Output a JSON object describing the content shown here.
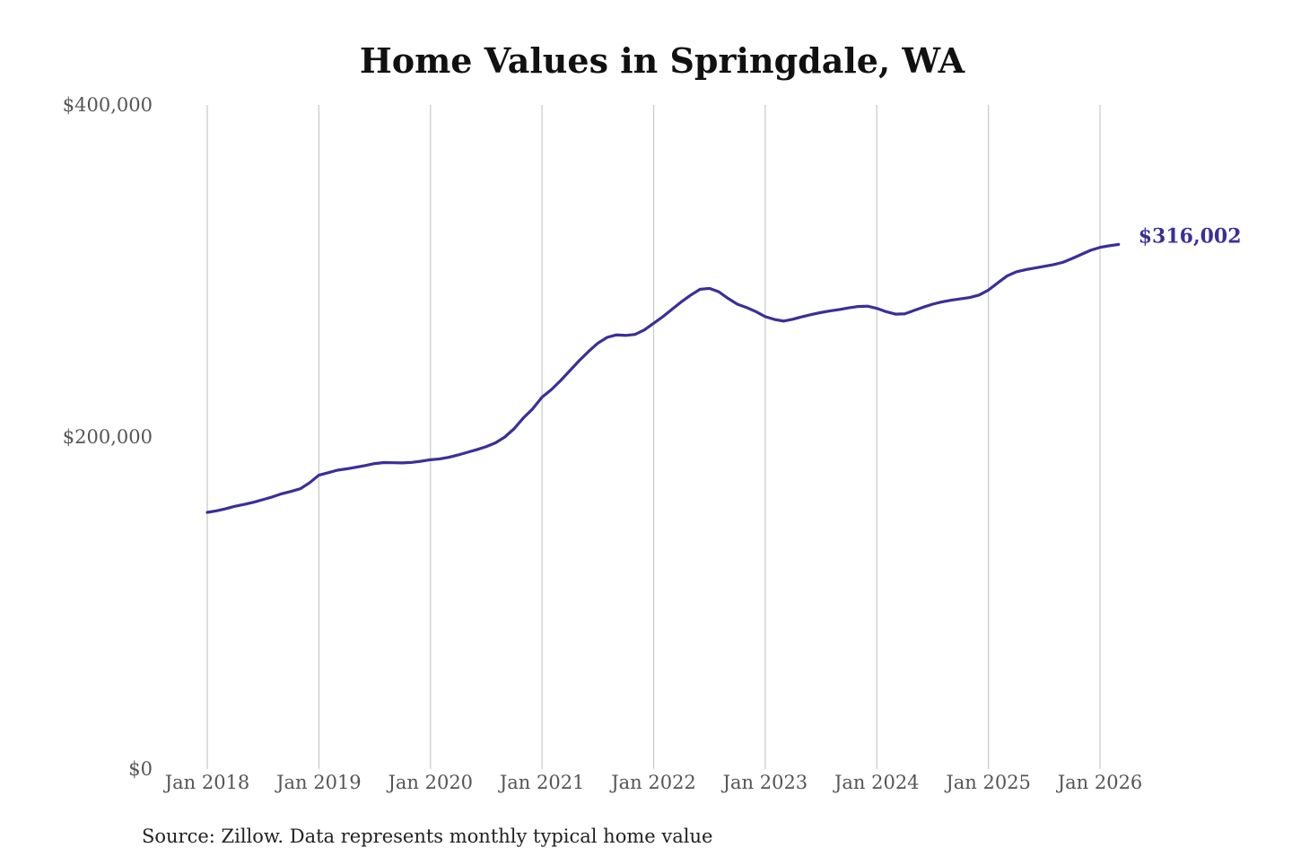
{
  "chart_data": {
    "type": "line",
    "title": "Home Values in Springdale, WA",
    "source": "Source: Zillow. Data represents monthly typical home value",
    "color": "#3b2f98",
    "grid": true,
    "x": [
      "2018-01",
      "2018-02",
      "2018-03",
      "2018-04",
      "2018-05",
      "2018-06",
      "2018-07",
      "2018-08",
      "2018-09",
      "2018-10",
      "2018-11",
      "2018-12",
      "2019-01",
      "2019-02",
      "2019-03",
      "2019-04",
      "2019-05",
      "2019-06",
      "2019-07",
      "2019-08",
      "2019-09",
      "2019-10",
      "2019-11",
      "2019-12",
      "2020-01",
      "2020-02",
      "2020-03",
      "2020-04",
      "2020-05",
      "2020-06",
      "2020-07",
      "2020-08",
      "2020-09",
      "2020-10",
      "2020-11",
      "2020-12",
      "2021-01",
      "2021-02",
      "2021-03",
      "2021-04",
      "2021-05",
      "2021-06",
      "2021-07",
      "2021-08",
      "2021-09",
      "2021-10",
      "2021-11",
      "2021-12",
      "2022-01",
      "2022-02",
      "2022-03",
      "2022-04",
      "2022-05",
      "2022-06",
      "2022-07",
      "2022-08",
      "2022-09",
      "2022-10",
      "2022-11",
      "2022-12",
      "2023-01",
      "2023-02",
      "2023-03",
      "2023-04",
      "2023-05",
      "2023-06",
      "2023-07",
      "2023-08",
      "2023-09",
      "2023-10",
      "2023-11",
      "2023-12",
      "2024-01",
      "2024-02",
      "2024-03",
      "2024-04",
      "2024-05",
      "2024-06",
      "2024-07",
      "2024-08",
      "2024-09",
      "2024-10",
      "2024-11",
      "2024-12",
      "2025-01",
      "2025-02",
      "2025-03",
      "2025-04",
      "2025-05",
      "2025-06",
      "2025-07",
      "2025-08",
      "2025-09",
      "2025-10",
      "2025-11",
      "2025-12",
      "2026-01",
      "2026-02",
      "2026-03"
    ],
    "values": [
      154600,
      155500,
      156800,
      158300,
      159400,
      160700,
      162300,
      163900,
      165800,
      167200,
      168800,
      172400,
      177000,
      178500,
      180000,
      180800,
      181800,
      182800,
      184000,
      184600,
      184500,
      184400,
      184700,
      185400,
      186300,
      186800,
      187800,
      189200,
      190800,
      192400,
      194200,
      196500,
      200000,
      205000,
      211500,
      217000,
      224000,
      228500,
      234000,
      240000,
      246000,
      251500,
      256500,
      260000,
      261500,
      261200,
      261800,
      264500,
      268500,
      272500,
      277000,
      281500,
      285500,
      289000,
      289500,
      287500,
      283500,
      280000,
      278000,
      275500,
      272500,
      270800,
      269800,
      271000,
      272500,
      273800,
      275000,
      276000,
      276800,
      277800,
      278600,
      278800,
      277500,
      275500,
      274000,
      274200,
      276200,
      278200,
      280000,
      281400,
      282400,
      283200,
      284000,
      285500,
      288500,
      292800,
      297000,
      299500,
      300800,
      301800,
      302800,
      303800,
      305200,
      307500,
      310000,
      312500,
      314200,
      315200,
      316002
    ],
    "annotation": {
      "x": "2026-03",
      "value": 316002,
      "label": "$316,002"
    },
    "ylim": [
      0,
      400000
    ],
    "yticks": [
      {
        "value": 0,
        "label": "$0"
      },
      {
        "value": 200000,
        "label": "$200,000"
      },
      {
        "value": 400000,
        "label": "$400,000"
      }
    ],
    "xticks": [
      {
        "value": "2018-01",
        "label": "Jan 2018"
      },
      {
        "value": "2019-01",
        "label": "Jan 2019"
      },
      {
        "value": "2020-01",
        "label": "Jan 2020"
      },
      {
        "value": "2021-01",
        "label": "Jan 2021"
      },
      {
        "value": "2022-01",
        "label": "Jan 2022"
      },
      {
        "value": "2023-01",
        "label": "Jan 2023"
      },
      {
        "value": "2024-01",
        "label": "Jan 2024"
      },
      {
        "value": "2025-01",
        "label": "Jan 2025"
      },
      {
        "value": "2026-01",
        "label": "Jan 2026"
      }
    ]
  }
}
